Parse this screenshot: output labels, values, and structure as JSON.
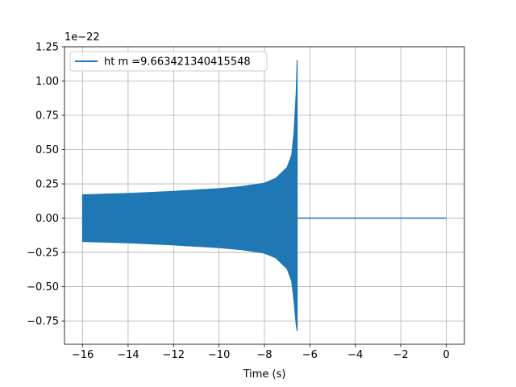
{
  "chart_data": {
    "type": "line",
    "title": "",
    "xlabel": "Time (s)",
    "ylabel": "",
    "y_offset_label": "1e−22",
    "xlim": [
      -16.8,
      0.8
    ],
    "ylim": [
      -0.92,
      1.25
    ],
    "x_ticks": [
      -16,
      -14,
      -12,
      -10,
      -8,
      -6,
      -4,
      -2,
      0
    ],
    "x_tick_labels": [
      "−16",
      "−14",
      "−12",
      "−10",
      "−8",
      "−6",
      "−4",
      "−2",
      "0"
    ],
    "y_ticks": [
      -0.75,
      -0.5,
      -0.25,
      0.0,
      0.25,
      0.5,
      0.75,
      1.0,
      1.25
    ],
    "y_tick_labels": [
      "−0.75",
      "−0.50",
      "−0.25",
      "0.00",
      "0.25",
      "0.50",
      "0.75",
      "1.00",
      "1.25"
    ],
    "grid": true,
    "legend_position": "top-left",
    "series": [
      {
        "name": "ht m =9.663421340415548",
        "color": "#1f77b4",
        "x_range": [
          -16.0,
          0.0
        ],
        "chirp_end": -6.56,
        "envelope_upper": [
          [
            -16.0,
            0.17
          ],
          [
            -14.0,
            0.18
          ],
          [
            -12.0,
            0.195
          ],
          [
            -10.0,
            0.215
          ],
          [
            -9.0,
            0.23
          ],
          [
            -8.0,
            0.255
          ],
          [
            -7.5,
            0.29
          ],
          [
            -7.0,
            0.37
          ],
          [
            -6.8,
            0.46
          ],
          [
            -6.7,
            0.62
          ],
          [
            -6.6,
            0.92
          ],
          [
            -6.56,
            1.15
          ]
        ],
        "envelope_lower": [
          [
            -16.0,
            -0.17
          ],
          [
            -14.0,
            -0.18
          ],
          [
            -12.0,
            -0.195
          ],
          [
            -10.0,
            -0.215
          ],
          [
            -9.0,
            -0.23
          ],
          [
            -8.0,
            -0.255
          ],
          [
            -7.5,
            -0.29
          ],
          [
            -7.0,
            -0.37
          ],
          [
            -6.8,
            -0.46
          ],
          [
            -6.7,
            -0.6
          ],
          [
            -6.6,
            -0.78
          ],
          [
            -6.56,
            -0.82
          ]
        ],
        "post_merger_value": 0.0
      }
    ]
  }
}
